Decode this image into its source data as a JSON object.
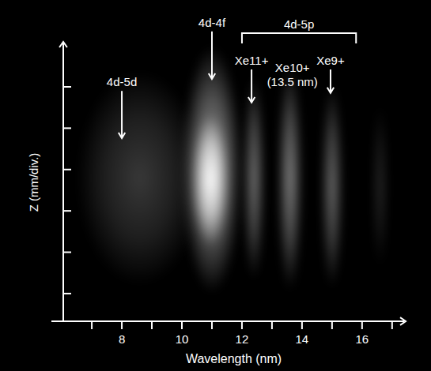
{
  "chart_data": {
    "type": "spectral_image",
    "xlabel": "Wavelength (nm)",
    "ylabel": "Z (mm/div.)",
    "xlim": [
      6.05,
      17.4
    ],
    "xticks": [
      8,
      10,
      12,
      14,
      16
    ],
    "xminor_ticks": [
      7,
      9,
      11,
      13,
      15,
      17
    ],
    "ylim": [
      0.33,
      7.05
    ],
    "yticks": [
      1,
      2,
      3,
      4,
      5,
      6
    ],
    "tick_labels": "x",
    "color": "#ffffff",
    "bands": [
      {
        "wavelength": 8.6,
        "z": 3.8,
        "width": 4.2,
        "height": 5.2,
        "intensity": 0.22
      },
      {
        "wavelength": 11.0,
        "z": 4.0,
        "width": 2.0,
        "height": 6.0,
        "intensity": 0.6
      },
      {
        "wavelength": 10.95,
        "z": 3.75,
        "width": 1.2,
        "height": 3.2,
        "intensity": 1.0
      },
      {
        "wavelength": 12.4,
        "z": 3.8,
        "width": 0.7,
        "height": 5.0,
        "intensity": 0.45
      },
      {
        "wavelength": 13.6,
        "z": 3.8,
        "width": 0.8,
        "height": 5.5,
        "intensity": 0.5
      },
      {
        "wavelength": 15.0,
        "z": 3.6,
        "width": 0.7,
        "height": 5.0,
        "intensity": 0.42
      },
      {
        "wavelength": 16.6,
        "z": 3.6,
        "width": 0.5,
        "height": 4.0,
        "intensity": 0.15
      }
    ],
    "annotations": [
      {
        "text": "4d-5d",
        "x": 8.0,
        "y": 5.9,
        "arrow_to": 4.76
      },
      {
        "text": "4d-4f",
        "x": 11.0,
        "y": 7.34,
        "arrow_to": 6.19
      },
      {
        "text": "Xe11+",
        "x": 12.32,
        "y": 6.42,
        "arrow_to": 5.62
      },
      {
        "text": "Xe10+",
        "note": "(13.5 nm)",
        "x": 13.68,
        "y": 6.25
      },
      {
        "text": "Xe9+",
        "x": 14.95,
        "y": 6.42,
        "arrow_to": 5.85
      }
    ],
    "brackets": [
      {
        "text": "4d-5p",
        "x": [
          12.0,
          15.8
        ],
        "y": 7.3,
        "to": 7.05
      }
    ]
  }
}
